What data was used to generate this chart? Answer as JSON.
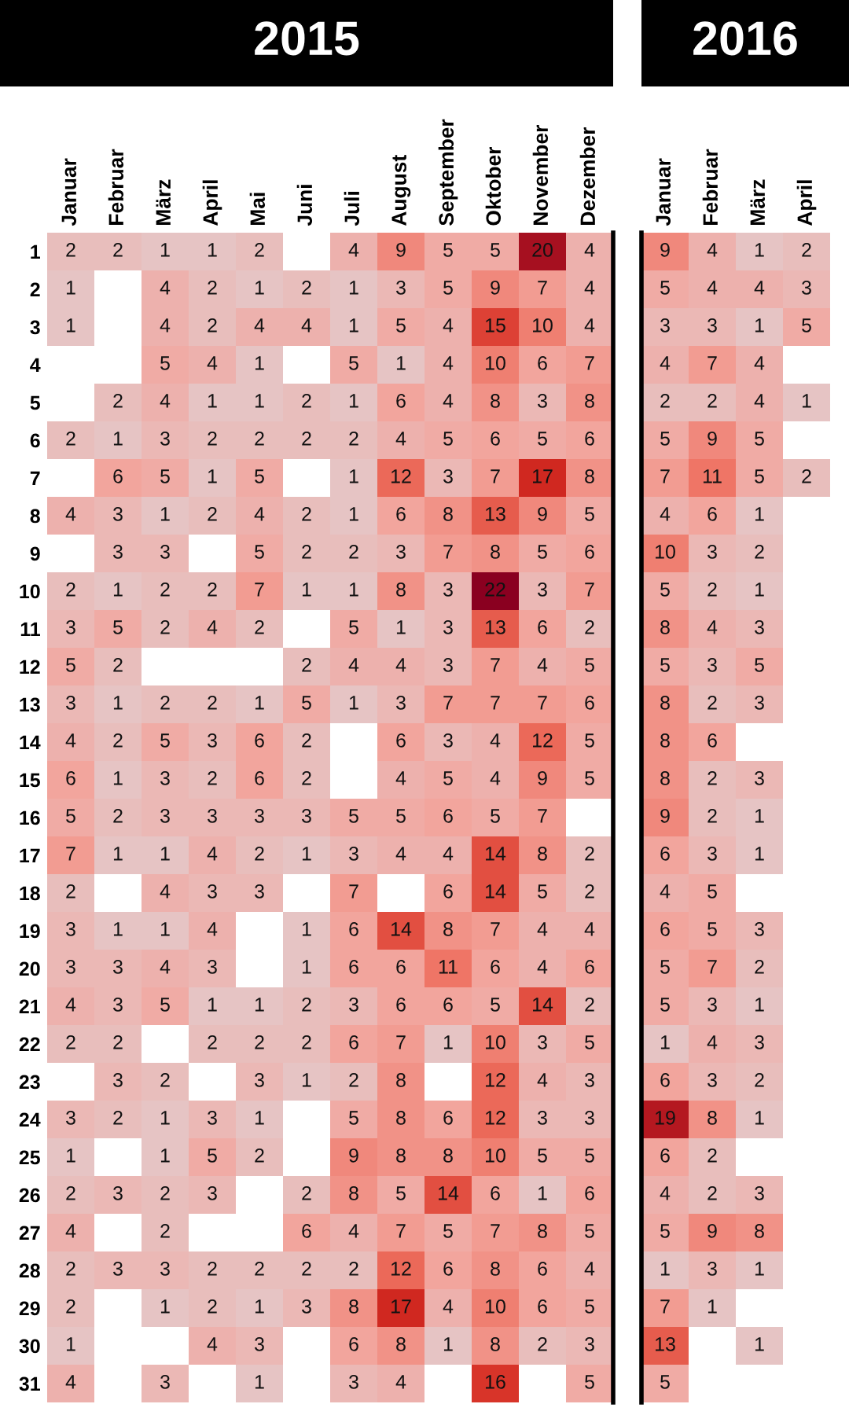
{
  "chart_data": [
    {
      "type": "heatmap",
      "title": "2015",
      "data_labels": true,
      "categories": [
        "Januar",
        "Februar",
        "März",
        "April",
        "Mai",
        "Juni",
        "Juli",
        "August",
        "September",
        "Oktober",
        "November",
        "Dezember"
      ],
      "y_categories": [
        "1",
        "2",
        "3",
        "4",
        "5",
        "6",
        "7",
        "8",
        "9",
        "10",
        "11",
        "12",
        "13",
        "14",
        "15",
        "16",
        "17",
        "18",
        "19",
        "20",
        "21",
        "22",
        "23",
        "24",
        "25",
        "26",
        "27",
        "28",
        "29",
        "30",
        "31"
      ],
      "cells": [
        [
          2,
          2,
          1,
          1,
          2,
          null,
          4,
          9,
          5,
          5,
          20,
          4
        ],
        [
          1,
          null,
          4,
          2,
          1,
          2,
          1,
          3,
          5,
          9,
          7,
          4
        ],
        [
          1,
          null,
          4,
          2,
          4,
          4,
          1,
          5,
          4,
          15,
          10,
          4
        ],
        [
          null,
          null,
          5,
          4,
          1,
          null,
          5,
          1,
          4,
          10,
          6,
          7
        ],
        [
          null,
          2,
          4,
          1,
          1,
          2,
          1,
          6,
          4,
          8,
          3,
          8
        ],
        [
          2,
          1,
          3,
          2,
          2,
          2,
          2,
          4,
          5,
          6,
          5,
          6
        ],
        [
          null,
          6,
          5,
          1,
          5,
          null,
          1,
          12,
          3,
          7,
          17,
          8
        ],
        [
          4,
          3,
          1,
          2,
          4,
          2,
          1,
          6,
          8,
          13,
          9,
          5
        ],
        [
          null,
          3,
          3,
          null,
          5,
          2,
          2,
          3,
          7,
          8,
          5,
          6
        ],
        [
          2,
          1,
          2,
          2,
          7,
          1,
          1,
          8,
          3,
          22,
          3,
          7
        ],
        [
          3,
          5,
          2,
          4,
          2,
          null,
          5,
          1,
          3,
          13,
          6,
          2
        ],
        [
          5,
          2,
          null,
          null,
          null,
          2,
          4,
          4,
          3,
          7,
          4,
          5
        ],
        [
          3,
          1,
          2,
          2,
          1,
          5,
          1,
          3,
          7,
          7,
          7,
          6
        ],
        [
          4,
          2,
          5,
          3,
          6,
          2,
          null,
          6,
          3,
          4,
          12,
          5
        ],
        [
          6,
          1,
          3,
          2,
          6,
          2,
          null,
          4,
          5,
          4,
          9,
          5
        ],
        [
          5,
          2,
          3,
          3,
          3,
          3,
          5,
          5,
          6,
          5,
          7,
          null
        ],
        [
          7,
          1,
          1,
          4,
          2,
          1,
          3,
          4,
          4,
          14,
          8,
          2
        ],
        [
          2,
          null,
          4,
          3,
          3,
          null,
          7,
          null,
          6,
          14,
          5,
          2
        ],
        [
          3,
          1,
          1,
          4,
          null,
          1,
          6,
          14,
          8,
          7,
          4,
          4
        ],
        [
          3,
          3,
          4,
          3,
          null,
          1,
          6,
          6,
          11,
          6,
          4,
          6
        ],
        [
          4,
          3,
          5,
          1,
          1,
          2,
          3,
          6,
          6,
          5,
          14,
          2
        ],
        [
          2,
          2,
          null,
          2,
          2,
          2,
          6,
          7,
          1,
          10,
          3,
          5
        ],
        [
          null,
          3,
          2,
          null,
          3,
          1,
          2,
          8,
          null,
          12,
          4,
          3
        ],
        [
          3,
          2,
          1,
          3,
          1,
          null,
          5,
          8,
          6,
          12,
          3,
          3
        ],
        [
          1,
          null,
          1,
          5,
          2,
          null,
          9,
          8,
          8,
          10,
          5,
          5
        ],
        [
          2,
          3,
          2,
          3,
          null,
          2,
          8,
          5,
          14,
          6,
          1,
          6
        ],
        [
          4,
          null,
          2,
          null,
          null,
          6,
          4,
          7,
          5,
          7,
          8,
          5
        ],
        [
          2,
          3,
          3,
          2,
          2,
          2,
          2,
          12,
          6,
          8,
          6,
          4
        ],
        [
          2,
          null,
          1,
          2,
          1,
          3,
          8,
          17,
          4,
          10,
          6,
          5
        ],
        [
          1,
          null,
          null,
          4,
          3,
          null,
          6,
          8,
          1,
          8,
          2,
          3
        ],
        [
          4,
          null,
          3,
          null,
          1,
          null,
          3,
          4,
          null,
          16,
          null,
          5
        ]
      ]
    },
    {
      "type": "heatmap",
      "title": "2016",
      "data_labels": true,
      "tick_labels": "x",
      "categories": [
        "Januar",
        "Februar",
        "März",
        "April"
      ],
      "y_categories": [
        "1",
        "2",
        "3",
        "4",
        "5",
        "6",
        "7",
        "8",
        "9",
        "10",
        "11",
        "12",
        "13",
        "14",
        "15",
        "16",
        "17",
        "18",
        "19",
        "20",
        "21",
        "22",
        "23",
        "24",
        "25",
        "26",
        "27",
        "28",
        "29",
        "30",
        "31"
      ],
      "cells": [
        [
          9,
          4,
          1,
          2
        ],
        [
          5,
          4,
          4,
          3
        ],
        [
          3,
          3,
          1,
          5
        ],
        [
          4,
          7,
          4,
          null
        ],
        [
          2,
          2,
          4,
          1
        ],
        [
          5,
          9,
          5,
          null
        ],
        [
          7,
          11,
          5,
          2
        ],
        [
          4,
          6,
          1,
          null
        ],
        [
          10,
          3,
          2,
          null
        ],
        [
          5,
          2,
          1,
          null
        ],
        [
          8,
          4,
          3,
          null
        ],
        [
          5,
          3,
          5,
          null
        ],
        [
          8,
          2,
          3,
          null
        ],
        [
          8,
          6,
          null,
          null
        ],
        [
          8,
          2,
          3,
          null
        ],
        [
          9,
          2,
          1,
          null
        ],
        [
          6,
          3,
          1,
          null
        ],
        [
          4,
          5,
          null,
          null
        ],
        [
          6,
          5,
          3,
          null
        ],
        [
          5,
          7,
          2,
          null
        ],
        [
          5,
          3,
          1,
          null
        ],
        [
          1,
          4,
          3,
          null
        ],
        [
          6,
          3,
          2,
          null
        ],
        [
          19,
          8,
          1,
          null
        ],
        [
          6,
          2,
          null,
          null
        ],
        [
          4,
          2,
          3,
          null
        ],
        [
          5,
          9,
          8,
          null
        ],
        [
          1,
          3,
          1,
          null
        ],
        [
          7,
          1,
          null,
          null
        ],
        [
          13,
          null,
          1,
          null
        ],
        [
          5,
          null,
          null,
          null
        ]
      ]
    }
  ]
}
